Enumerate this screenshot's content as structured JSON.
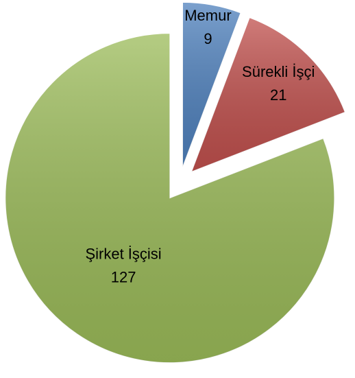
{
  "chart_data": {
    "type": "pie",
    "categories": [
      "Memur",
      "Sürekli İşçi",
      "Şirket İşçisi"
    ],
    "values": [
      9,
      21,
      127
    ],
    "colors": [
      "#4f81bd",
      "#c0504d",
      "#9bbb59"
    ],
    "exploded": true
  }
}
